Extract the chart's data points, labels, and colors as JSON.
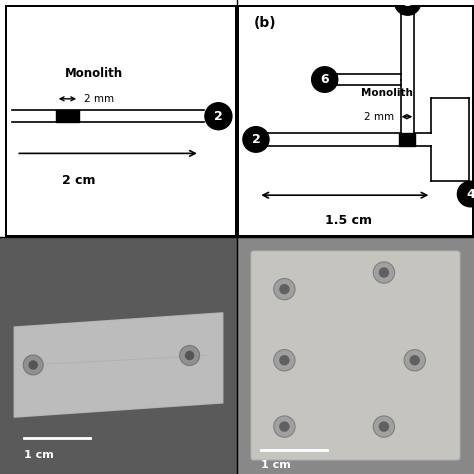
{
  "bg_color": "#ffffff",
  "panel_b_label": "(b)",
  "monolith_label": "Monolith",
  "mm_label": "2 mm",
  "cm_label_a": "2 cm",
  "cm_label_b": "1.5 cm",
  "scale_label": "1 cm",
  "photo_bg_left": "#5a5a5a",
  "photo_bg_right": "#888888",
  "photo_chip_left": "#c8c8c8",
  "photo_chip_right": "#d0cfc8"
}
